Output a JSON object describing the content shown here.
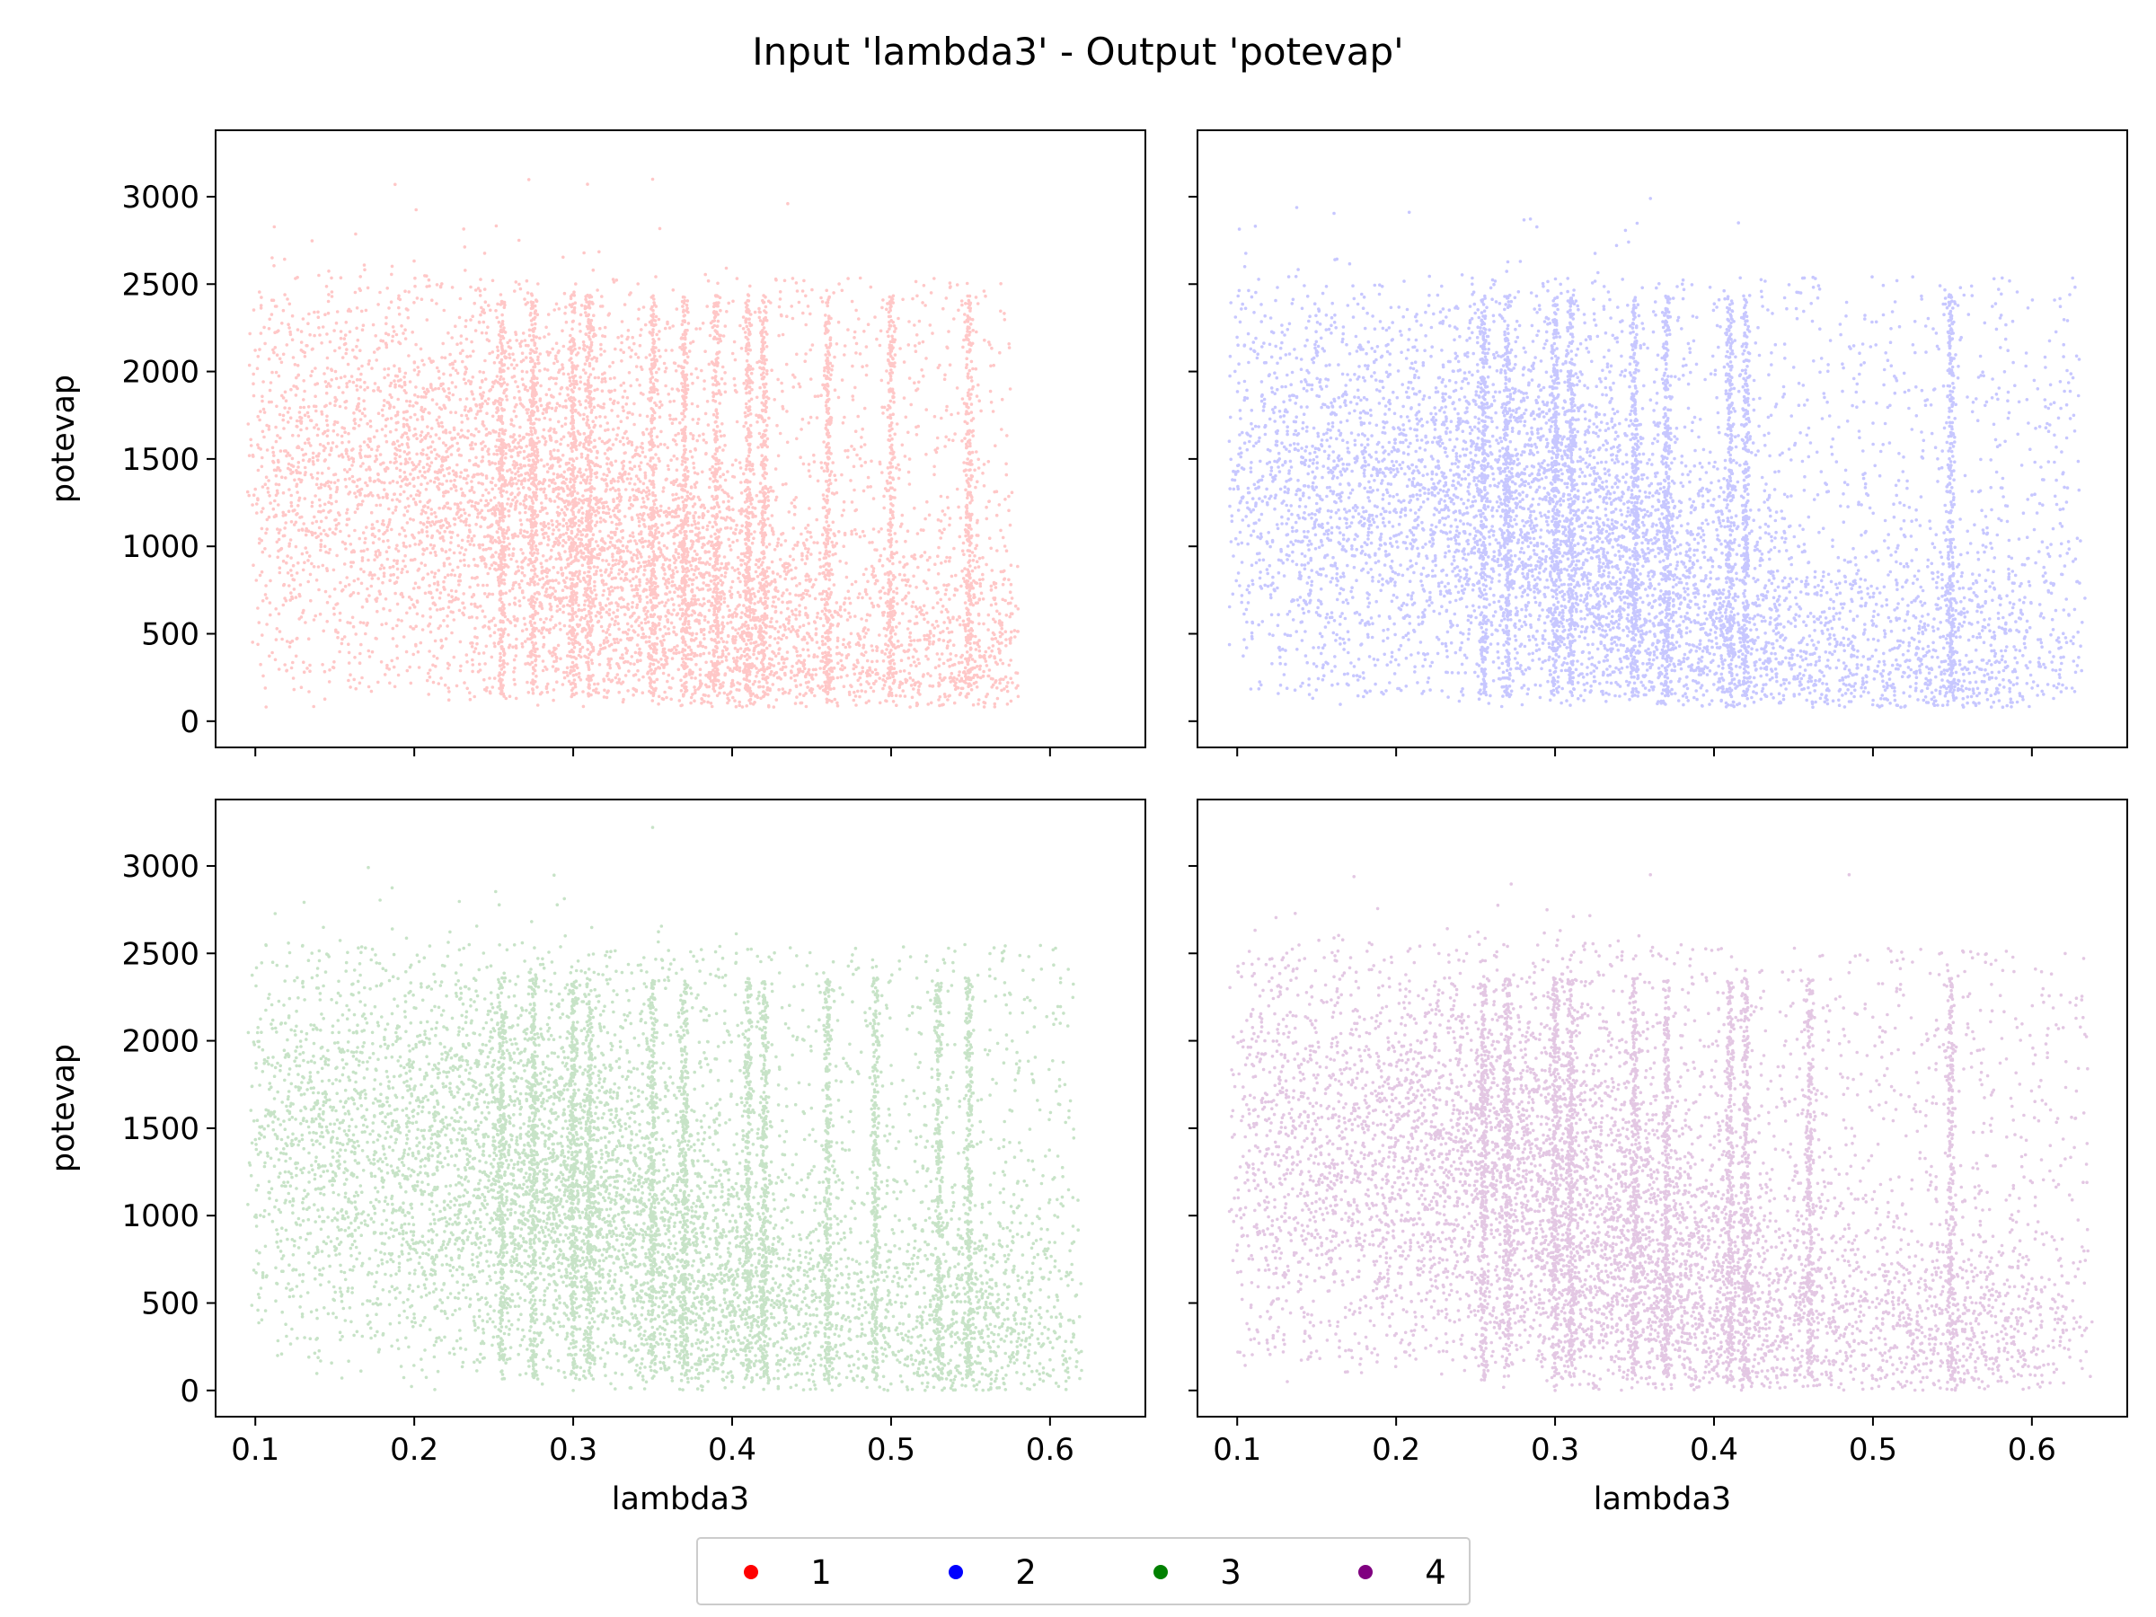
{
  "figure": {
    "title": "Input 'lambda3' - Output 'potevap'"
  },
  "chart_data": {
    "type": "scatter",
    "title": "Input 'lambda3' - Output 'potevap'",
    "xlabel": "lambda3",
    "ylabel": "potevap",
    "xlim": [
      0.075,
      0.66
    ],
    "ylim": [
      -150,
      3380
    ],
    "xticks": [
      0.1,
      0.2,
      0.3,
      0.4,
      0.5,
      0.6
    ],
    "yticks": [
      0,
      500,
      1000,
      1500,
      2000,
      2500,
      3000
    ],
    "shared_axes": true,
    "grid": false,
    "legend_position": "bottom-center",
    "legend": [
      {
        "label": "1",
        "color": "#ff0000"
      },
      {
        "label": "2",
        "color": "#0000ff"
      },
      {
        "label": "3",
        "color": "#008000"
      },
      {
        "label": "4",
        "color": "#800080"
      }
    ],
    "panels": [
      {
        "series": "1",
        "color": "#ff0000",
        "opacity": 0.22,
        "x_range": [
          0.1,
          0.575
        ],
        "y_range": [
          80,
          3100
        ],
        "cluster_centers": [
          [
            0.15,
            1400
          ],
          [
            0.25,
            1350
          ],
          [
            0.3,
            1300
          ],
          [
            0.35,
            800
          ],
          [
            0.42,
            400
          ],
          [
            0.55,
            300
          ]
        ],
        "vertical_streaks_x": [
          0.255,
          0.275,
          0.3,
          0.31,
          0.35,
          0.37,
          0.39,
          0.41,
          0.42,
          0.46,
          0.5,
          0.549
        ],
        "outliers": [
          [
            0.35,
            3100
          ],
          [
            0.435,
            2960
          ],
          [
            0.575,
            1900
          ]
        ]
      },
      {
        "series": "2",
        "color": "#0000ff",
        "opacity": 0.22,
        "x_range": [
          0.1,
          0.63
        ],
        "y_range": [
          80,
          2990
        ],
        "cluster_centers": [
          [
            0.15,
            1350
          ],
          [
            0.25,
            1300
          ],
          [
            0.3,
            1250
          ],
          [
            0.35,
            750
          ],
          [
            0.42,
            350
          ],
          [
            0.55,
            250
          ]
        ],
        "vertical_streaks_x": [
          0.255,
          0.27,
          0.3,
          0.31,
          0.35,
          0.37,
          0.41,
          0.42,
          0.549
        ],
        "outliers": [
          [
            0.36,
            2990
          ],
          [
            0.63,
            790
          ],
          [
            0.575,
            1850
          ]
        ]
      },
      {
        "series": "3",
        "color": "#008000",
        "opacity": 0.22,
        "x_range": [
          0.1,
          0.615
        ],
        "y_range": [
          0,
          3220
        ],
        "cluster_centers": [
          [
            0.15,
            1400
          ],
          [
            0.25,
            1350
          ],
          [
            0.3,
            1300
          ],
          [
            0.35,
            750
          ],
          [
            0.42,
            400
          ],
          [
            0.55,
            300
          ]
        ],
        "vertical_streaks_x": [
          0.255,
          0.275,
          0.3,
          0.31,
          0.35,
          0.37,
          0.41,
          0.42,
          0.46,
          0.49,
          0.53,
          0.549
        ],
        "outliers": [
          [
            0.35,
            3220
          ],
          [
            0.3,
            0
          ],
          [
            0.615,
            850
          ]
        ]
      },
      {
        "series": "4",
        "color": "#800080",
        "opacity": 0.22,
        "x_range": [
          0.1,
          0.635
        ],
        "y_range": [
          0,
          2950
        ],
        "cluster_centers": [
          [
            0.15,
            1350
          ],
          [
            0.25,
            1300
          ],
          [
            0.3,
            1250
          ],
          [
            0.35,
            700
          ],
          [
            0.42,
            400
          ],
          [
            0.55,
            200
          ]
        ],
        "vertical_streaks_x": [
          0.255,
          0.27,
          0.3,
          0.31,
          0.35,
          0.37,
          0.41,
          0.42,
          0.46,
          0.549
        ],
        "outliers": [
          [
            0.635,
            1840
          ],
          [
            0.3,
            0
          ],
          [
            0.36,
            2950
          ],
          [
            0.485,
            2950
          ]
        ]
      }
    ]
  }
}
